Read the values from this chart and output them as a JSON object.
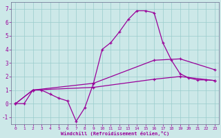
{
  "xlabel": "Windchill (Refroidissement éolien,°C)",
  "xlim": [
    -0.5,
    23.5
  ],
  "ylim": [
    -1.5,
    7.5
  ],
  "xticks": [
    0,
    1,
    2,
    3,
    4,
    5,
    6,
    7,
    8,
    9,
    10,
    11,
    12,
    13,
    14,
    15,
    16,
    17,
    18,
    19,
    20,
    21,
    22,
    23
  ],
  "yticks": [
    -1,
    0,
    1,
    2,
    3,
    4,
    5,
    6,
    7
  ],
  "background_color": "#cce8e8",
  "line_color": "#990099",
  "grid_color": "#99cccc",
  "line1_x": [
    0,
    1,
    2,
    3,
    4,
    5,
    6,
    7,
    8,
    9,
    10,
    11,
    12,
    13,
    14,
    15,
    16,
    17,
    18,
    19,
    20,
    21,
    22,
    23
  ],
  "line1_y": [
    0.0,
    0.0,
    1.0,
    1.0,
    0.7,
    0.4,
    0.2,
    -1.3,
    -0.3,
    1.5,
    4.0,
    4.5,
    5.3,
    6.2,
    6.85,
    6.85,
    6.7,
    4.5,
    3.2,
    2.2,
    1.9,
    1.75,
    1.75,
    1.7
  ],
  "line2_x": [
    0,
    2,
    9,
    16,
    19,
    23
  ],
  "line2_y": [
    0.0,
    1.0,
    1.5,
    3.2,
    3.3,
    2.5
  ],
  "line3_x": [
    0,
    2,
    9,
    16,
    19,
    23
  ],
  "line3_y": [
    0.0,
    1.0,
    1.2,
    1.8,
    2.0,
    1.7
  ]
}
